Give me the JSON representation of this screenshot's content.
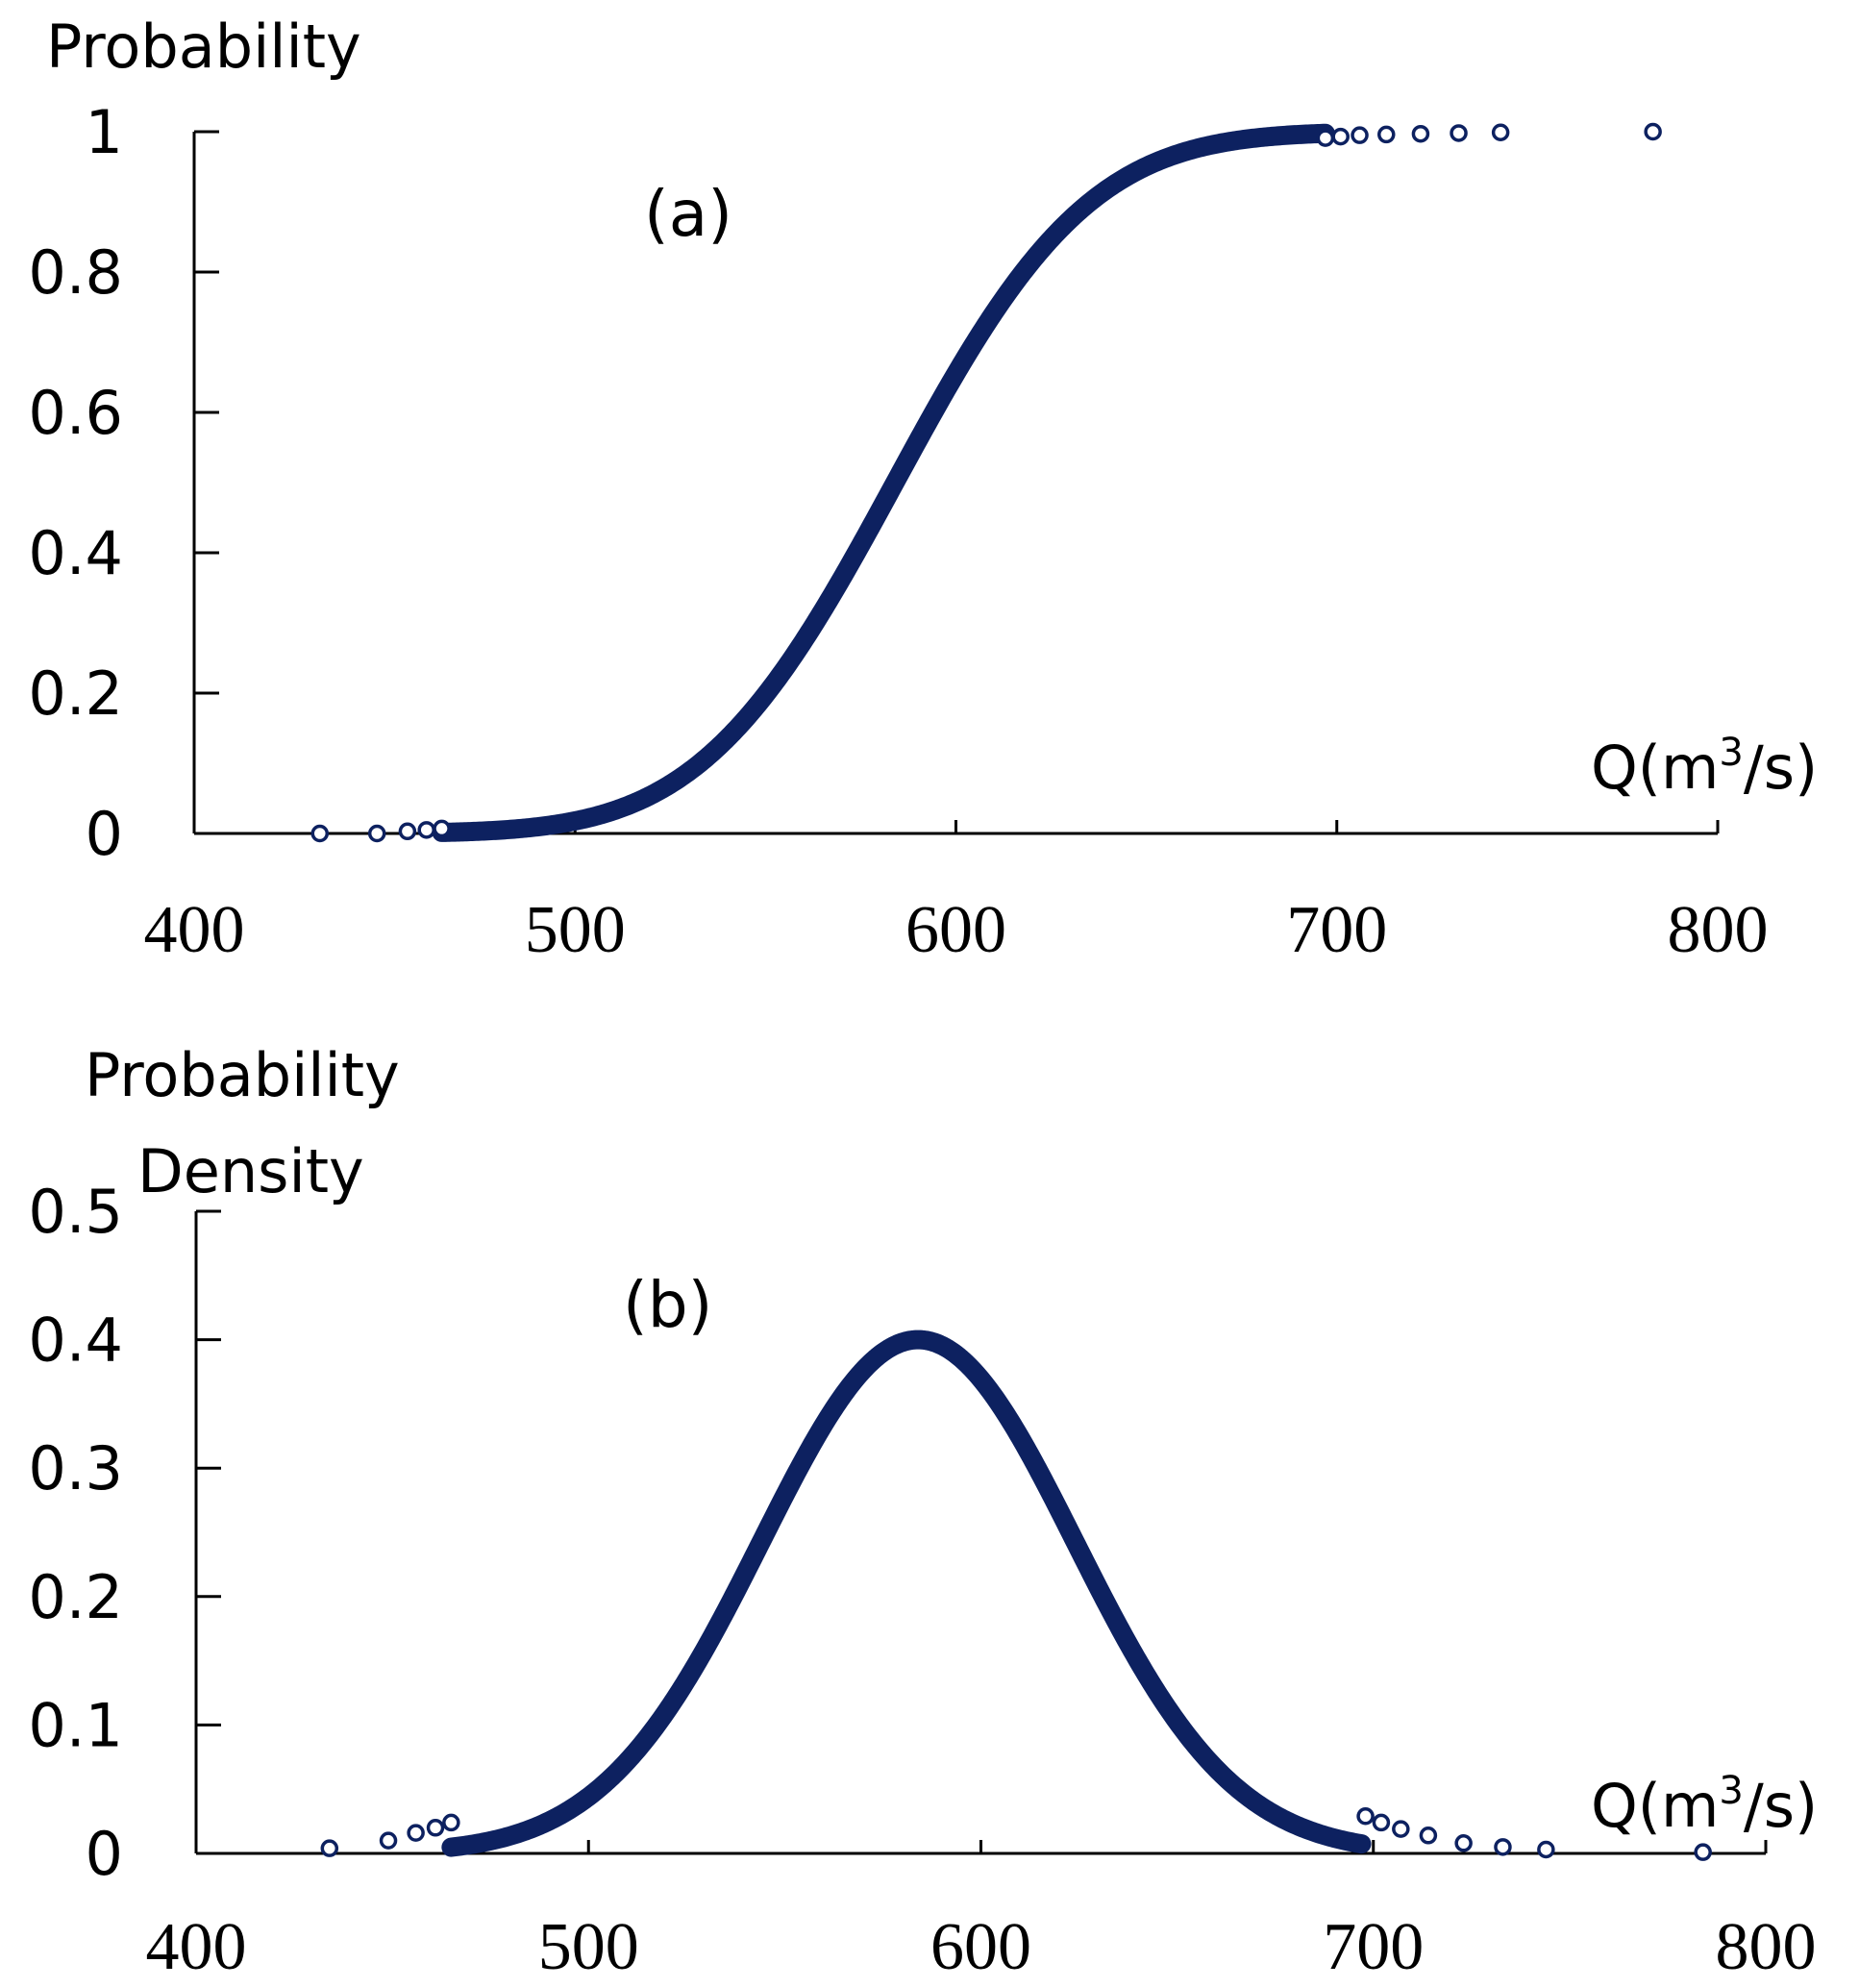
{
  "chart_data": [
    {
      "type": "scatter",
      "panel_label": "(a)",
      "ylabel": "Probability",
      "xlabel": "Q(m",
      "xlabel_sup": "3",
      "xlabel_tail": "/s)",
      "xlim": [
        400,
        800
      ],
      "ylim": [
        0,
        1
      ],
      "x_ticks": [
        "400",
        "500",
        "600",
        "700",
        "800"
      ],
      "x_tick_values": [
        400,
        500,
        600,
        700,
        800
      ],
      "y_ticks": [
        "0",
        "0.2",
        "0.4",
        "0.6",
        "0.8",
        "1"
      ],
      "y_tick_values": [
        0,
        0.2,
        0.4,
        0.6,
        0.8,
        1
      ],
      "distribution": {
        "kind": "normal-cdf",
        "mean": 584,
        "sd": 40
      },
      "series": [
        {
          "name": "dense-samples",
          "x_range": [
            465,
            697
          ],
          "color": "#0d2160"
        },
        {
          "name": "outlier-samples",
          "x": [
            433,
            448,
            456,
            461,
            465,
            697,
            701,
            706,
            713,
            722,
            732,
            743,
            783
          ],
          "y": [
            0.0,
            0.0,
            0.003,
            0.005,
            0.007,
            0.991,
            0.993,
            0.995,
            0.996,
            0.997,
            0.998,
            0.999,
            1.0
          ],
          "color": "#0d2160"
        }
      ]
    },
    {
      "type": "scatter",
      "panel_label": "(b)",
      "ylabel_line1": "Probability",
      "ylabel_line2": "Density",
      "xlabel": "Q(m",
      "xlabel_sup": "3",
      "xlabel_tail": "/s)",
      "xlim": [
        400,
        800
      ],
      "ylim": [
        0,
        0.5
      ],
      "x_ticks": [
        "400",
        "500",
        "600",
        "700",
        "800"
      ],
      "x_tick_values": [
        400,
        500,
        600,
        700,
        800
      ],
      "y_ticks": [
        "0",
        "0.1",
        "0.2",
        "0.3",
        "0.4",
        "0.5"
      ],
      "y_tick_values": [
        0,
        0.1,
        0.2,
        0.3,
        0.4,
        0.5
      ],
      "distribution": {
        "kind": "normal-pdf-scaled",
        "mean": 584,
        "sd": 40,
        "peak": 0.4
      },
      "series": [
        {
          "name": "dense-samples",
          "x_range": [
            465,
            697
          ],
          "color": "#0d2160"
        },
        {
          "name": "outlier-samples",
          "x": [
            434,
            449,
            456,
            461,
            465,
            698,
            702,
            707,
            714,
            723,
            733,
            744,
            784
          ],
          "y": [
            0.004,
            0.01,
            0.016,
            0.02,
            0.024,
            0.029,
            0.024,
            0.019,
            0.014,
            0.008,
            0.005,
            0.003,
            0.001
          ],
          "color": "#0d2160"
        }
      ]
    }
  ]
}
